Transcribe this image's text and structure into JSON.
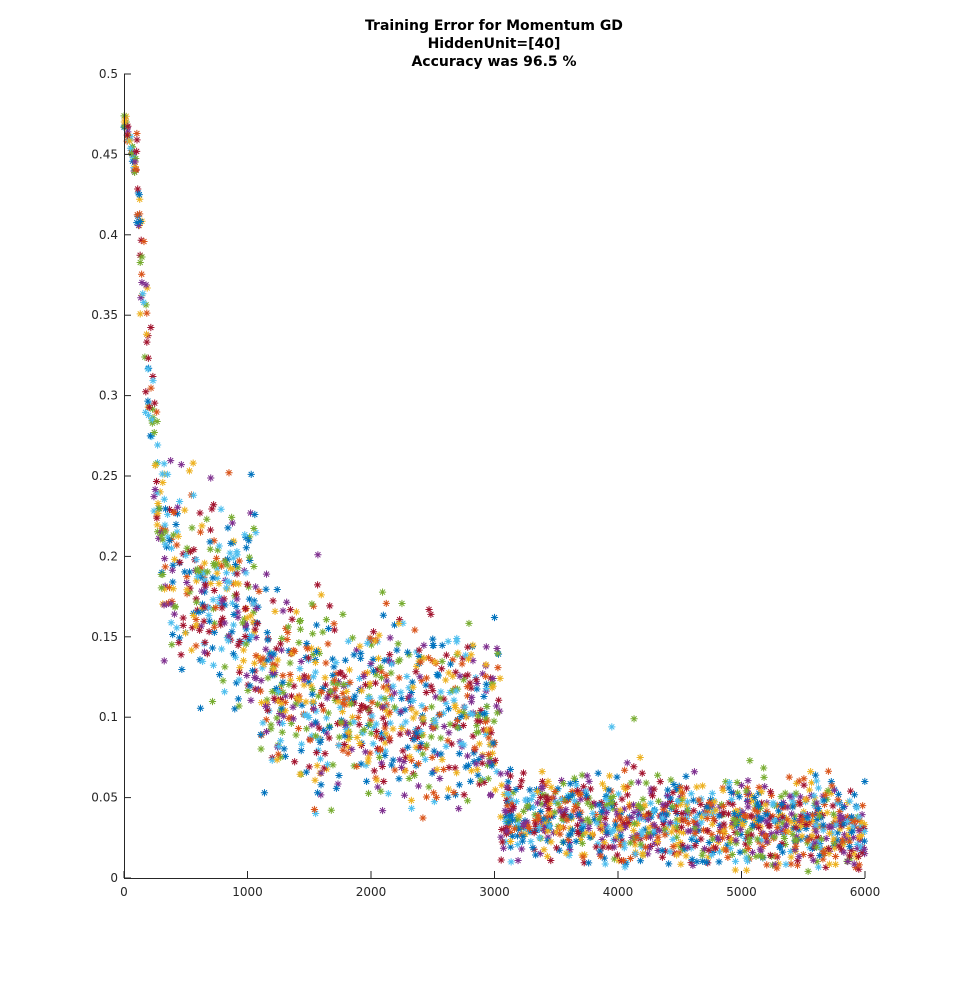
{
  "chart_data": {
    "type": "scatter",
    "title_lines": [
      "Training Error for Momentum GD",
      "HiddenUnit=[40]",
      "Accuracy was 96.5 %"
    ],
    "xlabel": "",
    "ylabel": "",
    "xlim": [
      0,
      6000
    ],
    "ylim": [
      0,
      0.5
    ],
    "x_ticks": [
      "0",
      "1000",
      "2000",
      "3000",
      "4000",
      "5000",
      "6000"
    ],
    "y_ticks": [
      "0",
      "0.05",
      "0.1",
      "0.15",
      "0.2",
      "0.25",
      "0.3",
      "0.35",
      "0.4",
      "0.45",
      "0.5"
    ],
    "grid": false,
    "legend": "none",
    "marker": "asterisk",
    "series_colors": [
      "#0072BD",
      "#D95319",
      "#EDB120",
      "#7E2F8E",
      "#77AC30",
      "#4DBEEE",
      "#A2142F"
    ],
    "trend_segments": [
      {
        "x_range": [
          0,
          100
        ],
        "mean_error": [
          0.472,
          0.44
        ],
        "spread": 0.006
      },
      {
        "x_range": [
          100,
          300
        ],
        "mean_error": [
          0.44,
          0.22
        ],
        "spread": 0.02
      },
      {
        "x_range": [
          300,
          1100
        ],
        "mean_error": [
          0.2,
          0.16
        ],
        "spread": 0.03
      },
      {
        "x_range": [
          1100,
          3050
        ],
        "mean_error": [
          0.12,
          0.095
        ],
        "spread": 0.028
      },
      {
        "x_range": [
          3050,
          6000
        ],
        "mean_error": [
          0.04,
          0.03
        ],
        "spread": 0.014
      }
    ],
    "notable_points": [
      {
        "x": 1030,
        "y": 0.251
      },
      {
        "x": 850,
        "y": 0.252
      },
      {
        "x": 560,
        "y": 0.258
      },
      {
        "x": 1570,
        "y": 0.201
      },
      {
        "x": 4130,
        "y": 0.099
      },
      {
        "x": 3950,
        "y": 0.094
      },
      {
        "x": 2470,
        "y": 0.167
      },
      {
        "x": 3000,
        "y": 0.162
      }
    ]
  }
}
